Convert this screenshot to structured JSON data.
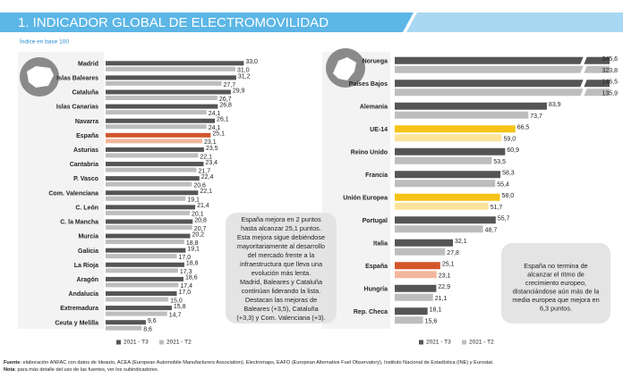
{
  "header": {
    "title": "1. INDICADOR GLOBAL DE ELECTROMOVILIDAD",
    "subtitle": "Índice en base 100"
  },
  "chart_data": [
    {
      "type": "hbar",
      "categories": [
        "Madrid",
        "Islas Baleares",
        "Cataluña",
        "Islas Canarias",
        "Navarra",
        "España",
        "Asturias",
        "Cantabria",
        "P. Vasco",
        "Com. Valenciana",
        "C. León",
        "C. la Mancha",
        "Murcia",
        "Galicia",
        "La Rioja",
        "Aragón",
        "Andalucía",
        "Extremadura",
        "Ceuta y Melilla"
      ],
      "series": [
        {
          "name": "2021 - T3",
          "color": "#555555",
          "values": [
            33.0,
            31.2,
            29.9,
            26.8,
            26.1,
            25.1,
            23.5,
            23.4,
            22.4,
            22.1,
            21.4,
            20.8,
            20.2,
            19.1,
            18.8,
            18.6,
            17.0,
            15.8,
            9.6
          ],
          "value_labels": [
            "33,0",
            "31,2",
            "29,9",
            "26,8",
            "26,1",
            "25,1",
            "23,5",
            "23,4",
            "22,4",
            "22,1",
            "21,4",
            "20,8",
            "20,2",
            "19,1",
            "18,8",
            "18,6",
            "17,0",
            "15,8",
            "9,6"
          ]
        },
        {
          "name": "2021 - T2",
          "color": "#bdbdbd",
          "values": [
            31.0,
            27.7,
            26.7,
            24.1,
            24.1,
            23.1,
            22.1,
            21.7,
            20.6,
            19.1,
            20.1,
            20.7,
            18.8,
            17.0,
            17.3,
            17.4,
            15.0,
            14.7,
            8.6
          ],
          "value_labels": [
            "31,0",
            "27,7",
            "26,7",
            "24,1",
            "24,1",
            "23,1",
            "22,1",
            "21,7",
            "20,6",
            "19,1",
            "20,1",
            "20,7",
            "18,8",
            "17,0",
            "17,3",
            "17,4",
            "15,0",
            "14,7",
            "8,6"
          ]
        }
      ],
      "highlights": {
        "España": [
          "#d2572a",
          "#f2b79c"
        ]
      },
      "xlim": [
        0,
        34
      ],
      "annotation": [
        "España mejora en 2 puntos",
        "hasta alcanzar 25,1 puntos.",
        "Esta mejora sigue debiéndose",
        "mayoritariamente al desarrollo",
        "del mercado frente a la",
        "infraestructura que lleva una",
        "evolución más lenta.",
        "Madrid, Baleares y Cataluña",
        "continúan liderando la lista.",
        "Destacan las mejoras de",
        "Baleares (+3,5), Cataluña",
        "(+3,3) y Com. Valenciana (+3)."
      ]
    },
    {
      "type": "hbar",
      "categories": [
        "Noruega",
        "Países Bajos",
        "Alemania",
        "UE-14",
        "Reino Unido",
        "Francia",
        "Unión Europea",
        "Portugal",
        "Italia",
        "España",
        "Hungría",
        "Rep. Checa"
      ],
      "series": [
        {
          "name": "2021 - T3",
          "color": "#555555",
          "values": [
            345.6,
            146.5,
            83.9,
            66.5,
            60.9,
            58.3,
            58.0,
            55.7,
            32.1,
            25.1,
            22.9,
            18.1
          ],
          "value_labels": [
            "345,6",
            "146,5",
            "83,9",
            "66,5",
            "60,9",
            "58,3",
            "58,0",
            "55,7",
            "32,1",
            "25,1",
            "22,9",
            "18,1"
          ]
        },
        {
          "name": "2021 - T2",
          "color": "#bdbdbd",
          "values": [
            323.8,
            135.9,
            73.7,
            59.0,
            53.5,
            55.4,
            51.7,
            48.7,
            27.8,
            23.1,
            21.1,
            15.6
          ],
          "value_labels": [
            "323,8",
            "135,9",
            "73,7",
            "59,0",
            "53,5",
            "55,4",
            "51,7",
            "48,7",
            "27,8",
            "23,1",
            "21,1",
            "15,6"
          ]
        }
      ],
      "highlights": {
        "UE-14": [
          "#f6c416",
          "#fde49a"
        ],
        "Unión Europea": [
          "#f6c416",
          "#fde49a"
        ],
        "España": [
          "#d2572a",
          "#f2b79c"
        ]
      },
      "xlim": [
        0,
        118
      ],
      "annotation": [
        "España no termina de",
        "alcanzar el ritmo de",
        "crecimiento europeo,",
        "distanciándose aún más de la",
        "media europea que mejora en",
        "6,3 puntos."
      ]
    }
  ],
  "footer": [
    {
      "label": "Fuente",
      "text": ": elaboración ANFAC con datos de Ideauto, ACEA (European Automobile Manufacturers Association), Electromaps, EAFO (European Alternative Fuel Observatory), Instituto Nacional de Estadística (INE) y Eurostat."
    },
    {
      "label": "Nota",
      "text": ": para más detalle del uso de las fuentes, ver los subindicadores."
    }
  ]
}
